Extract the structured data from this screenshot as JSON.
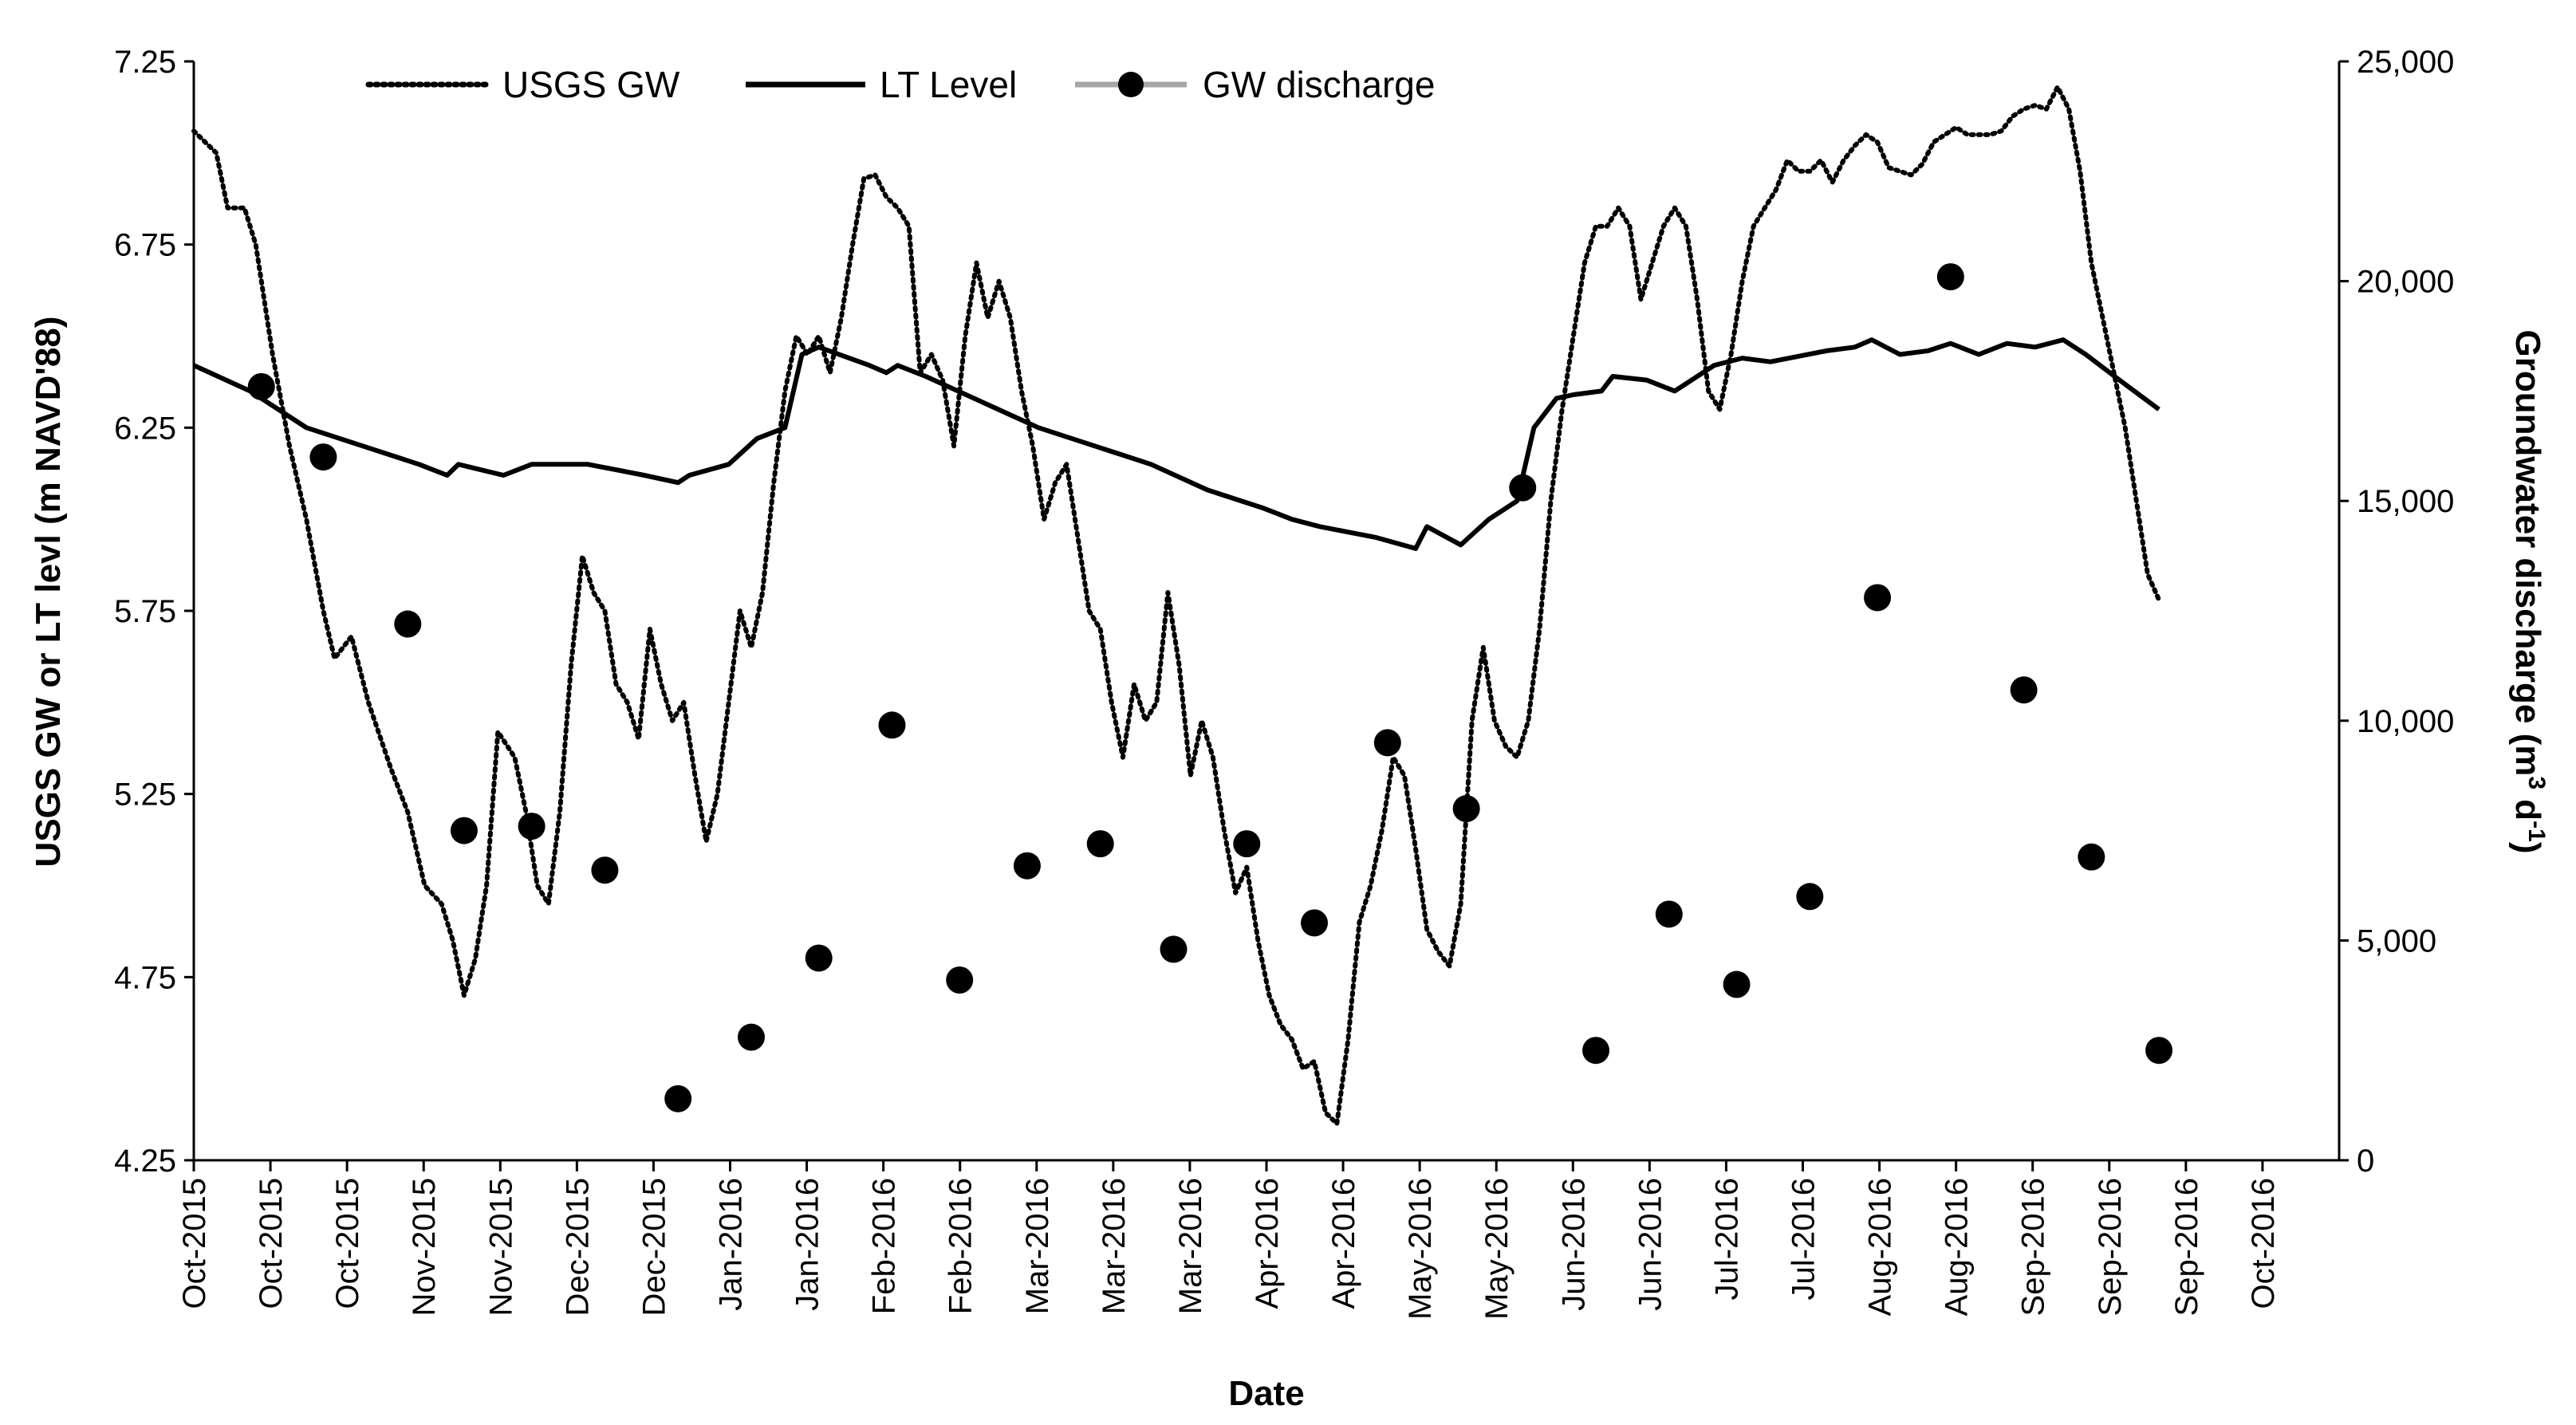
{
  "chart_data": {
    "type": "line",
    "title": "",
    "xlabel": "Date",
    "ylabel_left": "USGS GW or LT levl (m NAVD'88)",
    "ylabel_right_prefix": "Groundwater discharge (m",
    "ylabel_right_sup1": "3",
    "ylabel_right_mid": " d",
    "ylabel_right_sup2": "-1",
    "ylabel_right_suffix": ")",
    "legend": {
      "placement": "top-center",
      "entries": [
        "USGS GW",
        "LT Level",
        "GW discharge"
      ]
    },
    "x_tick_labels": [
      "Oct-2015",
      "Oct-2015",
      "Oct-2015",
      "Nov-2015",
      "Nov-2015",
      "Dec-2015",
      "Dec-2015",
      "Jan-2016",
      "Jan-2016",
      "Feb-2016",
      "Feb-2016",
      "Mar-2016",
      "Mar-2016",
      "Mar-2016",
      "Apr-2016",
      "Apr-2016",
      "May-2016",
      "May-2016",
      "Jun-2016",
      "Jun-2016",
      "Jul-2016",
      "Jul-2016",
      "Aug-2016",
      "Aug-2016",
      "Sep-2016",
      "Sep-2016",
      "Sep-2016",
      "Oct-2016"
    ],
    "x_range_days": [
      0,
      381
    ],
    "y_left": {
      "min": 4.25,
      "max": 7.25,
      "ticks": [
        "4.25",
        "4.75",
        "5.25",
        "5.75",
        "6.25",
        "6.75",
        "7.25"
      ]
    },
    "y_right": {
      "min": 0,
      "max": 25000,
      "ticks": [
        "0",
        "5,000",
        "10,000",
        "15,000",
        "20,000",
        "25,000"
      ]
    },
    "series": [
      {
        "name": "USGS GW",
        "axis": "left",
        "style": "dotted",
        "points": [
          [
            0,
            7.06
          ],
          [
            4,
            7.0
          ],
          [
            6,
            6.85
          ],
          [
            9,
            6.85
          ],
          [
            11,
            6.75
          ],
          [
            14,
            6.45
          ],
          [
            17,
            6.2
          ],
          [
            20,
            6.0
          ],
          [
            23,
            5.75
          ],
          [
            25,
            5.62
          ],
          [
            28,
            5.68
          ],
          [
            31,
            5.5
          ],
          [
            35,
            5.32
          ],
          [
            38,
            5.2
          ],
          [
            41,
            5.0
          ],
          [
            44,
            4.95
          ],
          [
            46,
            4.85
          ],
          [
            48,
            4.7
          ],
          [
            50,
            4.8
          ],
          [
            52,
            5.0
          ],
          [
            54,
            5.42
          ],
          [
            57,
            5.35
          ],
          [
            59,
            5.2
          ],
          [
            61,
            5.0
          ],
          [
            63,
            4.95
          ],
          [
            65,
            5.2
          ],
          [
            67,
            5.6
          ],
          [
            69,
            5.9
          ],
          [
            71,
            5.8
          ],
          [
            73,
            5.75
          ],
          [
            75,
            5.55
          ],
          [
            77,
            5.5
          ],
          [
            79,
            5.4
          ],
          [
            81,
            5.7
          ],
          [
            83,
            5.55
          ],
          [
            85,
            5.45
          ],
          [
            87,
            5.5
          ],
          [
            89,
            5.3
          ],
          [
            91,
            5.12
          ],
          [
            93,
            5.25
          ],
          [
            95,
            5.5
          ],
          [
            97,
            5.75
          ],
          [
            99,
            5.65
          ],
          [
            101,
            5.8
          ],
          [
            103,
            6.1
          ],
          [
            105,
            6.35
          ],
          [
            107,
            6.5
          ],
          [
            109,
            6.45
          ],
          [
            111,
            6.5
          ],
          [
            113,
            6.4
          ],
          [
            115,
            6.55
          ],
          [
            117,
            6.75
          ],
          [
            119,
            6.93
          ],
          [
            121,
            6.94
          ],
          [
            123,
            6.88
          ],
          [
            125,
            6.85
          ],
          [
            127,
            6.8
          ],
          [
            129,
            6.4
          ],
          [
            131,
            6.45
          ],
          [
            133,
            6.38
          ],
          [
            135,
            6.2
          ],
          [
            137,
            6.5
          ],
          [
            139,
            6.7
          ],
          [
            141,
            6.55
          ],
          [
            143,
            6.65
          ],
          [
            145,
            6.55
          ],
          [
            147,
            6.35
          ],
          [
            149,
            6.2
          ],
          [
            151,
            6.0
          ],
          [
            153,
            6.1
          ],
          [
            155,
            6.15
          ],
          [
            157,
            5.95
          ],
          [
            159,
            5.75
          ],
          [
            161,
            5.7
          ],
          [
            163,
            5.5
          ],
          [
            165,
            5.35
          ],
          [
            167,
            5.55
          ],
          [
            169,
            5.45
          ],
          [
            171,
            5.5
          ],
          [
            173,
            5.8
          ],
          [
            175,
            5.6
          ],
          [
            177,
            5.3
          ],
          [
            179,
            5.45
          ],
          [
            181,
            5.35
          ],
          [
            183,
            5.15
          ],
          [
            185,
            4.98
          ],
          [
            187,
            5.05
          ],
          [
            189,
            4.85
          ],
          [
            191,
            4.7
          ],
          [
            193,
            4.62
          ],
          [
            195,
            4.58
          ],
          [
            197,
            4.5
          ],
          [
            199,
            4.52
          ],
          [
            201,
            4.38
          ],
          [
            203,
            4.35
          ],
          [
            205,
            4.58
          ],
          [
            207,
            4.9
          ],
          [
            209,
            5.0
          ],
          [
            211,
            5.15
          ],
          [
            213,
            5.35
          ],
          [
            215,
            5.3
          ],
          [
            217,
            5.1
          ],
          [
            219,
            4.88
          ],
          [
            221,
            4.82
          ],
          [
            223,
            4.78
          ],
          [
            225,
            4.95
          ],
          [
            227,
            5.45
          ],
          [
            229,
            5.65
          ],
          [
            231,
            5.45
          ],
          [
            233,
            5.38
          ],
          [
            235,
            5.35
          ],
          [
            237,
            5.45
          ],
          [
            239,
            5.7
          ],
          [
            241,
            6.05
          ],
          [
            243,
            6.3
          ],
          [
            245,
            6.5
          ],
          [
            247,
            6.7
          ],
          [
            249,
            6.8
          ],
          [
            251,
            6.8
          ],
          [
            253,
            6.85
          ],
          [
            255,
            6.8
          ],
          [
            257,
            6.6
          ],
          [
            259,
            6.7
          ],
          [
            261,
            6.8
          ],
          [
            263,
            6.85
          ],
          [
            265,
            6.8
          ],
          [
            267,
            6.6
          ],
          [
            269,
            6.35
          ],
          [
            271,
            6.3
          ],
          [
            273,
            6.45
          ],
          [
            275,
            6.65
          ],
          [
            277,
            6.8
          ],
          [
            279,
            6.85
          ],
          [
            281,
            6.9
          ],
          [
            283,
            6.98
          ],
          [
            285,
            6.95
          ],
          [
            287,
            6.95
          ],
          [
            289,
            6.98
          ],
          [
            291,
            6.92
          ],
          [
            293,
            6.98
          ],
          [
            295,
            7.02
          ],
          [
            297,
            7.05
          ],
          [
            299,
            7.03
          ],
          [
            301,
            6.96
          ],
          [
            303,
            6.95
          ],
          [
            305,
            6.94
          ],
          [
            307,
            6.97
          ],
          [
            309,
            7.03
          ],
          [
            311,
            7.05
          ],
          [
            313,
            7.07
          ],
          [
            315,
            7.05
          ],
          [
            317,
            7.05
          ],
          [
            319,
            7.05
          ],
          [
            321,
            7.06
          ],
          [
            323,
            7.1
          ],
          [
            325,
            7.12
          ],
          [
            327,
            7.13
          ],
          [
            329,
            7.12
          ],
          [
            331,
            7.18
          ],
          [
            333,
            7.12
          ],
          [
            335,
            6.95
          ],
          [
            337,
            6.7
          ],
          [
            339,
            6.55
          ],
          [
            341,
            6.4
          ],
          [
            343,
            6.25
          ],
          [
            345,
            6.05
          ],
          [
            347,
            5.85
          ],
          [
            349,
            5.78
          ]
        ]
      },
      {
        "name": "LT Level",
        "axis": "left",
        "style": "solid",
        "points": [
          [
            0,
            6.42
          ],
          [
            10,
            6.35
          ],
          [
            20,
            6.25
          ],
          [
            30,
            6.2
          ],
          [
            40,
            6.15
          ],
          [
            45,
            6.12
          ],
          [
            47,
            6.15
          ],
          [
            55,
            6.12
          ],
          [
            60,
            6.15
          ],
          [
            70,
            6.15
          ],
          [
            80,
            6.12
          ],
          [
            86,
            6.1
          ],
          [
            88,
            6.12
          ],
          [
            95,
            6.15
          ],
          [
            100,
            6.22
          ],
          [
            105,
            6.25
          ],
          [
            108,
            6.45
          ],
          [
            111,
            6.47
          ],
          [
            120,
            6.42
          ],
          [
            123,
            6.4
          ],
          [
            125,
            6.42
          ],
          [
            130,
            6.39
          ],
          [
            140,
            6.32
          ],
          [
            150,
            6.25
          ],
          [
            160,
            6.2
          ],
          [
            170,
            6.15
          ],
          [
            180,
            6.08
          ],
          [
            190,
            6.03
          ],
          [
            195,
            6.0
          ],
          [
            200,
            5.98
          ],
          [
            210,
            5.95
          ],
          [
            217,
            5.92
          ],
          [
            219,
            5.98
          ],
          [
            225,
            5.93
          ],
          [
            230,
            6.0
          ],
          [
            235,
            6.05
          ],
          [
            238,
            6.25
          ],
          [
            242,
            6.33
          ],
          [
            245,
            6.34
          ],
          [
            250,
            6.35
          ],
          [
            252,
            6.39
          ],
          [
            258,
            6.38
          ],
          [
            263,
            6.35
          ],
          [
            265,
            6.37
          ],
          [
            270,
            6.42
          ],
          [
            275,
            6.44
          ],
          [
            280,
            6.43
          ],
          [
            290,
            6.46
          ],
          [
            295,
            6.47
          ],
          [
            298,
            6.49
          ],
          [
            303,
            6.45
          ],
          [
            308,
            6.46
          ],
          [
            312,
            6.48
          ],
          [
            317,
            6.45
          ],
          [
            322,
            6.48
          ],
          [
            327,
            6.47
          ],
          [
            332,
            6.49
          ],
          [
            336,
            6.45
          ],
          [
            342,
            6.38
          ],
          [
            349,
            6.3
          ]
        ]
      },
      {
        "name": "GW discharge",
        "axis": "right",
        "style": "markers",
        "points": [
          [
            12,
            17600
          ],
          [
            23,
            16000
          ],
          [
            38,
            12200
          ],
          [
            48,
            7500
          ],
          [
            60,
            7600
          ],
          [
            73,
            6600
          ],
          [
            86,
            1400
          ],
          [
            99,
            2800
          ],
          [
            111,
            4600
          ],
          [
            124,
            9900
          ],
          [
            136,
            4100
          ],
          [
            148,
            6700
          ],
          [
            161,
            7200
          ],
          [
            174,
            4800
          ],
          [
            187,
            7200
          ],
          [
            199,
            5400
          ],
          [
            212,
            9500
          ],
          [
            226,
            8000
          ],
          [
            236,
            15300
          ],
          [
            249,
            2500
          ],
          [
            262,
            5600
          ],
          [
            274,
            4000
          ],
          [
            287,
            6000
          ],
          [
            299,
            12800
          ],
          [
            312,
            20100
          ],
          [
            325,
            10700
          ],
          [
            337,
            6900
          ],
          [
            349,
            2500
          ]
        ]
      }
    ]
  }
}
